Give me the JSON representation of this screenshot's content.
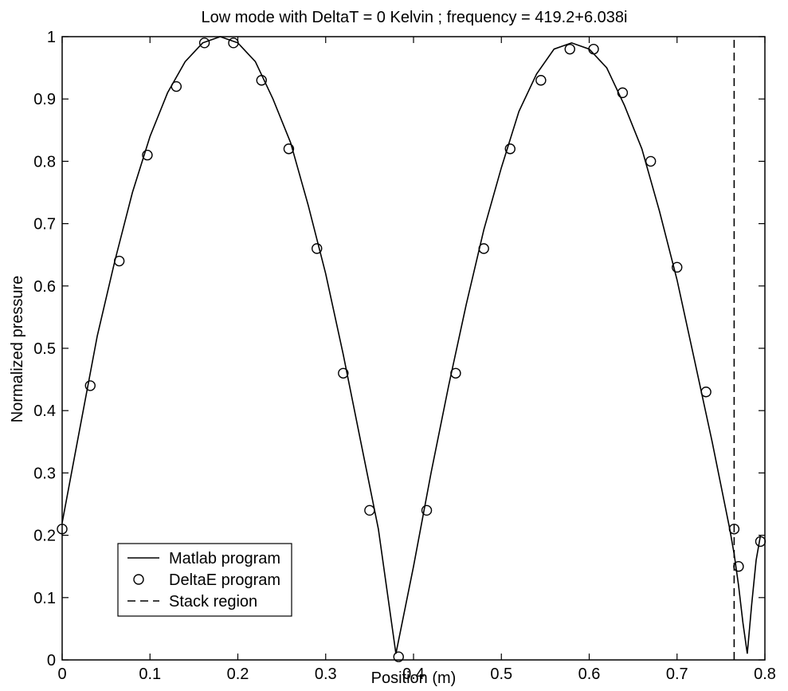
{
  "chart_data": {
    "type": "line",
    "title": "Low mode with DeltaT = 0 Kelvin ; frequency = 419.2+6.038i",
    "xlabel": "Position (m)",
    "ylabel": "Normalized pressure",
    "xlim": [
      0,
      0.8
    ],
    "ylim": [
      0,
      1
    ],
    "xticks": [
      "0",
      "0.1",
      "0.2",
      "0.3",
      "0.4",
      "0.5",
      "0.6",
      "0.7",
      "0.8"
    ],
    "yticks": [
      "0",
      "0.1",
      "0.2",
      "0.3",
      "0.4",
      "0.5",
      "0.6",
      "0.7",
      "0.8",
      "0.9",
      "1"
    ],
    "grid": false,
    "legend_position": "bottom-left",
    "series": [
      {
        "name": "Matlab program",
        "style": "solid-line",
        "x": [
          0,
          0.02,
          0.04,
          0.06,
          0.08,
          0.1,
          0.12,
          0.14,
          0.16,
          0.18,
          0.2,
          0.22,
          0.24,
          0.26,
          0.28,
          0.3,
          0.32,
          0.34,
          0.36,
          0.38,
          0.4,
          0.42,
          0.44,
          0.46,
          0.48,
          0.5,
          0.52,
          0.54,
          0.56,
          0.58,
          0.6,
          0.62,
          0.64,
          0.66,
          0.68,
          0.7,
          0.72,
          0.74,
          0.76,
          0.765,
          0.77,
          0.775,
          0.78,
          0.785,
          0.79,
          0.795
        ],
        "y": [
          0.22,
          0.37,
          0.52,
          0.64,
          0.75,
          0.84,
          0.91,
          0.96,
          0.99,
          1.0,
          0.99,
          0.96,
          0.9,
          0.83,
          0.73,
          0.62,
          0.49,
          0.35,
          0.21,
          0.01,
          0.15,
          0.3,
          0.44,
          0.57,
          0.69,
          0.79,
          0.88,
          0.94,
          0.98,
          0.99,
          0.98,
          0.95,
          0.89,
          0.82,
          0.72,
          0.61,
          0.48,
          0.35,
          0.21,
          0.17,
          0.12,
          0.06,
          0.01,
          0.09,
          0.16,
          0.2
        ]
      },
      {
        "name": "DeltaE program",
        "style": "circle-markers",
        "x": [
          0,
          0.032,
          0.065,
          0.097,
          0.13,
          0.162,
          0.195,
          0.227,
          0.258,
          0.29,
          0.32,
          0.35,
          0.383,
          0.415,
          0.448,
          0.48,
          0.51,
          0.545,
          0.578,
          0.605,
          0.638,
          0.67,
          0.7,
          0.733,
          0.765,
          0.77,
          0.795
        ],
        "y": [
          0.21,
          0.44,
          0.64,
          0.81,
          0.92,
          0.99,
          0.99,
          0.93,
          0.82,
          0.66,
          0.46,
          0.24,
          0.005,
          0.24,
          0.46,
          0.66,
          0.82,
          0.93,
          0.98,
          0.98,
          0.91,
          0.8,
          0.63,
          0.43,
          0.21,
          0.15,
          0.19
        ]
      },
      {
        "name": "Stack region",
        "style": "dashed-line",
        "x": [
          0.765,
          0.765
        ],
        "y": [
          0,
          1
        ]
      }
    ]
  }
}
